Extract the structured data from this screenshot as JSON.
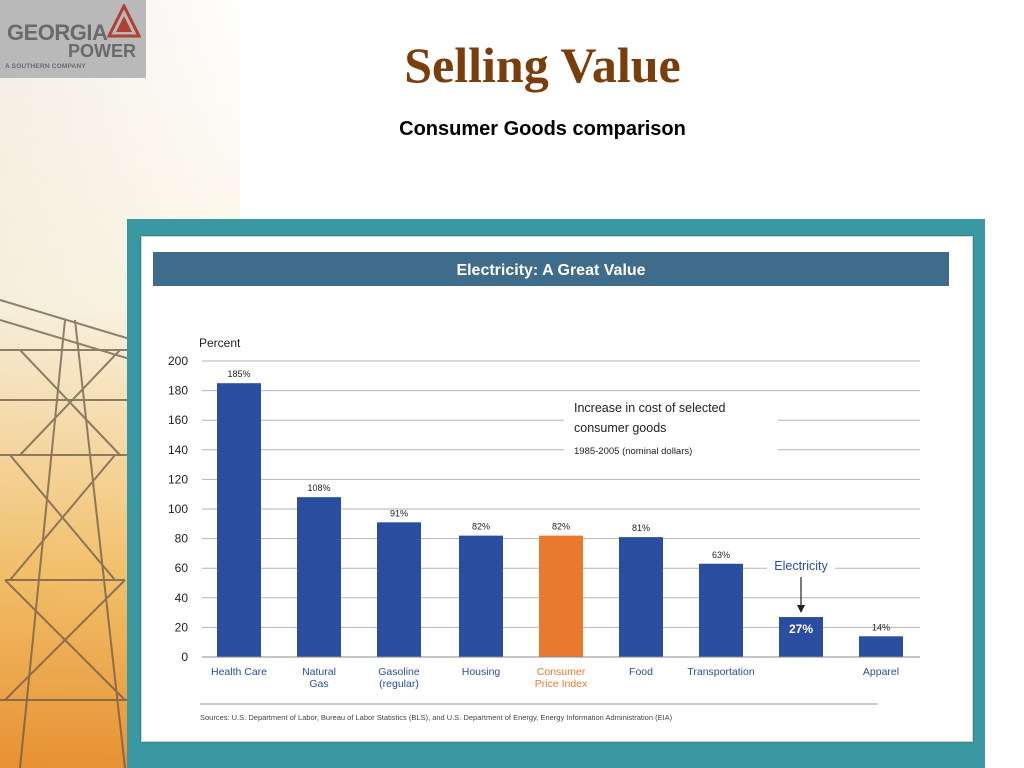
{
  "slide": {
    "title": "Selling Value",
    "subtitle": "Consumer Goods comparison"
  },
  "logo": {
    "line1": "GEORGIA",
    "line2": "POWER",
    "line3": "A SOUTHERN COMPANY"
  },
  "colors": {
    "bar": "#2a4da0",
    "highlight": "#e8792f",
    "banner": "#3f6c8a",
    "title": "#7a3d0c",
    "frame": "#3a98a3"
  },
  "chart_data": {
    "type": "bar",
    "title": "Electricity: A Great Value",
    "ylabel": "Percent",
    "ylim": [
      0,
      200
    ],
    "yticks": [
      0,
      20,
      40,
      60,
      80,
      100,
      120,
      140,
      160,
      180,
      200
    ],
    "categories": [
      [
        "Health Care"
      ],
      [
        "Natural",
        "Gas"
      ],
      [
        "Gasoline",
        "(regular)"
      ],
      [
        "Housing"
      ],
      [
        "Consumer",
        "Price Index"
      ],
      [
        "Food"
      ],
      [
        "Transportation"
      ],
      [
        ""
      ],
      [
        "Apparel"
      ]
    ],
    "values": [
      185,
      108,
      91,
      82,
      82,
      81,
      63,
      27,
      14
    ],
    "value_labels": [
      "185%",
      "108%",
      "91%",
      "82%",
      "82%",
      "81%",
      "63%",
      "27%",
      "14%"
    ],
    "highlight_index": 4,
    "callout_index": 7,
    "annotation": {
      "heading_line1": "Increase in cost of selected",
      "heading_line2": "consumer goods",
      "period": "1985-2005 (nominal dollars)"
    },
    "callout_label": "Electricity",
    "source": "Sources: U.S. Department of Labor, Bureau of Labor Statistics (BLS), and U.S. Department of Energy, Energy Information Administration (EIA)",
    "grid": true
  }
}
